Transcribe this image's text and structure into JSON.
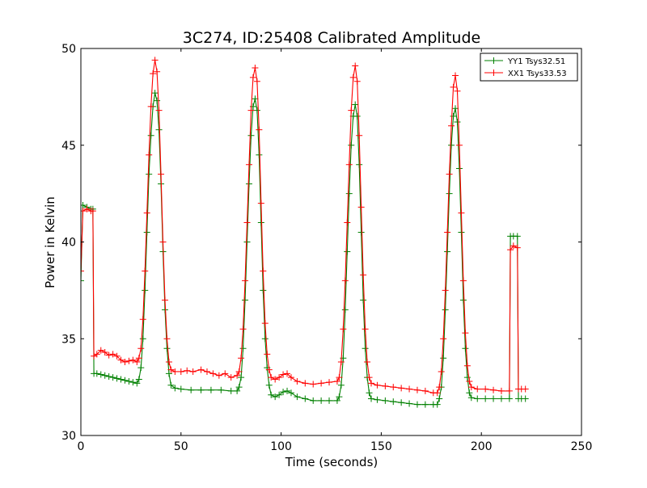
{
  "chart_data": {
    "type": "line",
    "title": "3C274, ID:25408 Calibrated Amplitude",
    "xlabel": "Time (seconds)",
    "ylabel": "Power in Kelvin",
    "xlim": [
      0,
      250
    ],
    "ylim": [
      30,
      50
    ],
    "xticks": [
      0,
      50,
      100,
      150,
      200,
      250
    ],
    "yticks": [
      30,
      35,
      40,
      45,
      50
    ],
    "grid": false,
    "legend_position": "top-right",
    "marker": "+",
    "series": [
      {
        "name": "YY1 Tsys32.51",
        "color": "#008000",
        "points": [
          [
            0,
            38
          ],
          [
            1,
            41.9
          ],
          [
            3,
            41.8
          ],
          [
            5,
            41.7
          ],
          [
            6,
            41.7
          ],
          [
            6.5,
            33.2
          ],
          [
            8,
            33.2
          ],
          [
            10,
            33.15
          ],
          [
            12,
            33.1
          ],
          [
            14,
            33.05
          ],
          [
            16,
            33.0
          ],
          [
            18,
            32.95
          ],
          [
            20,
            32.9
          ],
          [
            22,
            32.85
          ],
          [
            24,
            32.8
          ],
          [
            26,
            32.75
          ],
          [
            28,
            32.7
          ],
          [
            29,
            32.9
          ],
          [
            30,
            33.5
          ],
          [
            31,
            35.0
          ],
          [
            32,
            37.5
          ],
          [
            33,
            40.5
          ],
          [
            34,
            43.5
          ],
          [
            35,
            45.5
          ],
          [
            36,
            47.0
          ],
          [
            37,
            47.7
          ],
          [
            38,
            47.3
          ],
          [
            39,
            45.8
          ],
          [
            40,
            43.0
          ],
          [
            41,
            39.5
          ],
          [
            42,
            36.5
          ],
          [
            43,
            34.5
          ],
          [
            44,
            33.2
          ],
          [
            45,
            32.6
          ],
          [
            47,
            32.45
          ],
          [
            50,
            32.4
          ],
          [
            55,
            32.35
          ],
          [
            60,
            32.35
          ],
          [
            65,
            32.35
          ],
          [
            70,
            32.35
          ],
          [
            75,
            32.3
          ],
          [
            78,
            32.3
          ],
          [
            79,
            32.5
          ],
          [
            80,
            33.0
          ],
          [
            81,
            34.5
          ],
          [
            82,
            37.0
          ],
          [
            83,
            40.0
          ],
          [
            84,
            43.0
          ],
          [
            85,
            45.5
          ],
          [
            86,
            47.0
          ],
          [
            87,
            47.4
          ],
          [
            88,
            46.8
          ],
          [
            89,
            44.5
          ],
          [
            90,
            41.0
          ],
          [
            91,
            37.5
          ],
          [
            92,
            35.0
          ],
          [
            93,
            33.5
          ],
          [
            94,
            32.6
          ],
          [
            95,
            32.1
          ],
          [
            97,
            32.0
          ],
          [
            99,
            32.1
          ],
          [
            101,
            32.25
          ],
          [
            103,
            32.3
          ],
          [
            105,
            32.2
          ],
          [
            108,
            32.0
          ],
          [
            112,
            31.9
          ],
          [
            116,
            31.8
          ],
          [
            120,
            31.8
          ],
          [
            124,
            31.8
          ],
          [
            128,
            31.8
          ],
          [
            129,
            32.0
          ],
          [
            130,
            32.6
          ],
          [
            131,
            34.0
          ],
          [
            132,
            36.5
          ],
          [
            133,
            39.5
          ],
          [
            134,
            42.5
          ],
          [
            135,
            45.0
          ],
          [
            136,
            46.5
          ],
          [
            137,
            47.1
          ],
          [
            138,
            46.5
          ],
          [
            139,
            44.0
          ],
          [
            140,
            40.5
          ],
          [
            141,
            37.0
          ],
          [
            142,
            34.5
          ],
          [
            143,
            33.0
          ],
          [
            144,
            32.2
          ],
          [
            145,
            31.9
          ],
          [
            148,
            31.85
          ],
          [
            152,
            31.8
          ],
          [
            156,
            31.75
          ],
          [
            160,
            31.7
          ],
          [
            164,
            31.65
          ],
          [
            168,
            31.6
          ],
          [
            172,
            31.6
          ],
          [
            176,
            31.6
          ],
          [
            178,
            31.6
          ],
          [
            179,
            31.9
          ],
          [
            180,
            32.5
          ],
          [
            181,
            34.0
          ],
          [
            182,
            36.5
          ],
          [
            183,
            39.5
          ],
          [
            184,
            42.5
          ],
          [
            185,
            45.0
          ],
          [
            186,
            46.5
          ],
          [
            187,
            46.9
          ],
          [
            188,
            46.2
          ],
          [
            189,
            43.8
          ],
          [
            190,
            40.5
          ],
          [
            191,
            37.0
          ],
          [
            192,
            34.5
          ],
          [
            193,
            33.0
          ],
          [
            194,
            32.2
          ],
          [
            195,
            31.95
          ],
          [
            198,
            31.9
          ],
          [
            202,
            31.9
          ],
          [
            206,
            31.9
          ],
          [
            210,
            31.9
          ],
          [
            214,
            31.9
          ],
          [
            214.5,
            40.3
          ],
          [
            216,
            40.3
          ],
          [
            218,
            40.3
          ],
          [
            218.5,
            31.9
          ],
          [
            220,
            31.9
          ],
          [
            222,
            31.9
          ]
        ]
      },
      {
        "name": "XX1 Tsys33.53",
        "color": "#ff0000",
        "points": [
          [
            0,
            38.5
          ],
          [
            1,
            41.6
          ],
          [
            3,
            41.7
          ],
          [
            5,
            41.6
          ],
          [
            6,
            41.6
          ],
          [
            6.5,
            34.1
          ],
          [
            8,
            34.2
          ],
          [
            10,
            34.4
          ],
          [
            12,
            34.3
          ],
          [
            14,
            34.15
          ],
          [
            16,
            34.2
          ],
          [
            18,
            34.1
          ],
          [
            20,
            33.9
          ],
          [
            22,
            33.8
          ],
          [
            24,
            33.85
          ],
          [
            26,
            33.9
          ],
          [
            28,
            33.8
          ],
          [
            29,
            34.0
          ],
          [
            30,
            34.5
          ],
          [
            31,
            36.0
          ],
          [
            32,
            38.5
          ],
          [
            33,
            41.5
          ],
          [
            34,
            44.5
          ],
          [
            35,
            47.0
          ],
          [
            36,
            48.7
          ],
          [
            37,
            49.4
          ],
          [
            38,
            48.8
          ],
          [
            39,
            46.8
          ],
          [
            40,
            43.5
          ],
          [
            41,
            40.0
          ],
          [
            42,
            37.0
          ],
          [
            43,
            35.0
          ],
          [
            44,
            33.8
          ],
          [
            45,
            33.4
          ],
          [
            47,
            33.3
          ],
          [
            50,
            33.3
          ],
          [
            53,
            33.35
          ],
          [
            56,
            33.3
          ],
          [
            60,
            33.4
          ],
          [
            63,
            33.3
          ],
          [
            66,
            33.2
          ],
          [
            69,
            33.1
          ],
          [
            72,
            33.2
          ],
          [
            75,
            33.0
          ],
          [
            78,
            33.1
          ],
          [
            79,
            33.3
          ],
          [
            80,
            34.0
          ],
          [
            81,
            35.5
          ],
          [
            82,
            38.0
          ],
          [
            83,
            41.0
          ],
          [
            84,
            44.0
          ],
          [
            85,
            46.8
          ],
          [
            86,
            48.5
          ],
          [
            87,
            49.0
          ],
          [
            88,
            48.3
          ],
          [
            89,
            45.8
          ],
          [
            90,
            42.0
          ],
          [
            91,
            38.5
          ],
          [
            92,
            35.8
          ],
          [
            93,
            34.2
          ],
          [
            94,
            33.4
          ],
          [
            95,
            33.0
          ],
          [
            97,
            32.9
          ],
          [
            99,
            33.0
          ],
          [
            101,
            33.15
          ],
          [
            103,
            33.2
          ],
          [
            105,
            33.0
          ],
          [
            108,
            32.8
          ],
          [
            112,
            32.7
          ],
          [
            116,
            32.65
          ],
          [
            120,
            32.7
          ],
          [
            124,
            32.75
          ],
          [
            128,
            32.8
          ],
          [
            129,
            33.0
          ],
          [
            130,
            33.8
          ],
          [
            131,
            35.5
          ],
          [
            132,
            38.0
          ],
          [
            133,
            41.0
          ],
          [
            134,
            44.0
          ],
          [
            135,
            46.8
          ],
          [
            136,
            48.5
          ],
          [
            137,
            49.1
          ],
          [
            138,
            48.3
          ],
          [
            139,
            45.5
          ],
          [
            140,
            41.8
          ],
          [
            141,
            38.3
          ],
          [
            142,
            35.5
          ],
          [
            143,
            33.8
          ],
          [
            144,
            33.0
          ],
          [
            145,
            32.7
          ],
          [
            148,
            32.6
          ],
          [
            152,
            32.55
          ],
          [
            156,
            32.5
          ],
          [
            160,
            32.45
          ],
          [
            164,
            32.4
          ],
          [
            168,
            32.35
          ],
          [
            172,
            32.3
          ],
          [
            176,
            32.2
          ],
          [
            178,
            32.2
          ],
          [
            179,
            32.5
          ],
          [
            180,
            33.3
          ],
          [
            181,
            35.0
          ],
          [
            182,
            37.5
          ],
          [
            183,
            40.5
          ],
          [
            184,
            43.5
          ],
          [
            185,
            46.0
          ],
          [
            186,
            48.0
          ],
          [
            187,
            48.6
          ],
          [
            188,
            47.8
          ],
          [
            189,
            45.0
          ],
          [
            190,
            41.5
          ],
          [
            191,
            38.0
          ],
          [
            192,
            35.3
          ],
          [
            193,
            33.6
          ],
          [
            194,
            32.8
          ],
          [
            195,
            32.5
          ],
          [
            198,
            32.4
          ],
          [
            202,
            32.4
          ],
          [
            206,
            32.35
          ],
          [
            210,
            32.3
          ],
          [
            214,
            32.3
          ],
          [
            214.5,
            39.6
          ],
          [
            216,
            39.8
          ],
          [
            218,
            39.7
          ],
          [
            218.5,
            32.4
          ],
          [
            220,
            32.4
          ],
          [
            222,
            32.4
          ]
        ]
      }
    ]
  }
}
